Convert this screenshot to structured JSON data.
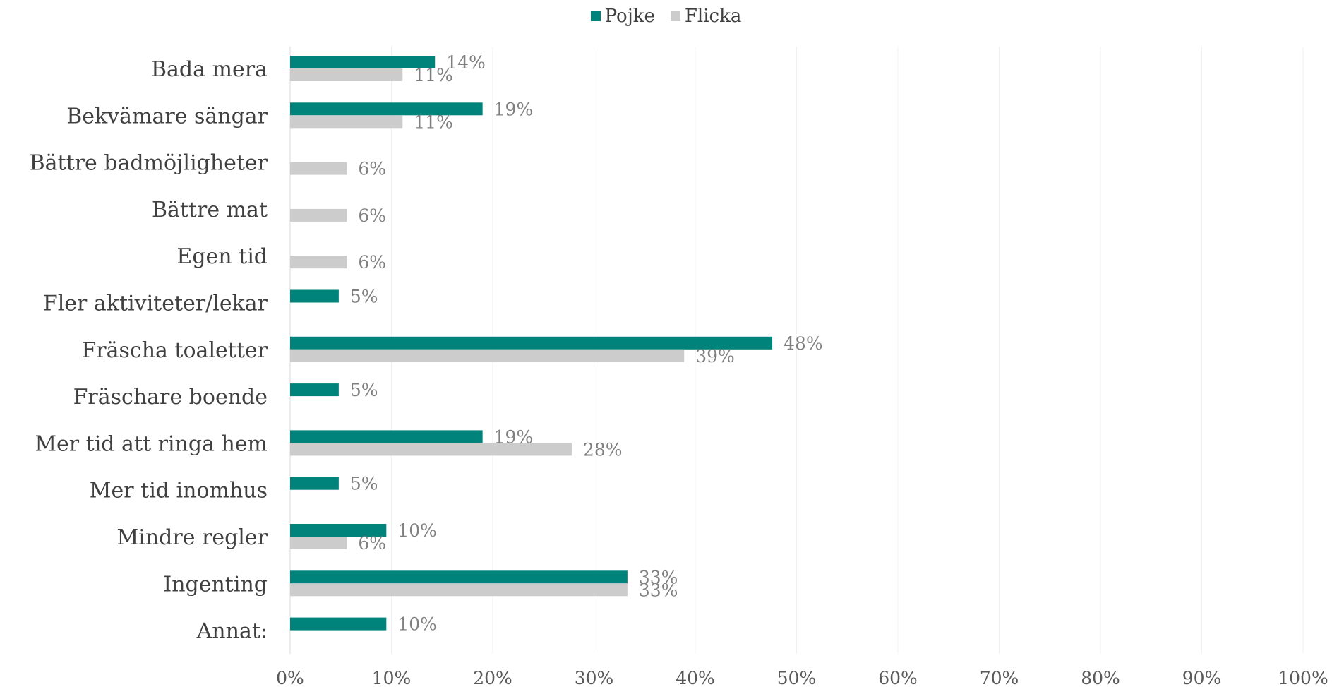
{
  "chart_data": {
    "type": "bar",
    "orientation": "horizontal",
    "categories": [
      "Bada mera",
      "Bekvämare sängar",
      "Bättre badmöjligheter",
      "Bättre mat",
      "Egen tid",
      "Fler aktiviteter/lekar",
      "Fräscha toaletter",
      "Fräschare boende",
      "Mer tid att ringa hem",
      "Mer tid inomhus",
      "Mindre regler",
      "Ingenting",
      "Annat:"
    ],
    "series": [
      {
        "name": "Pojke",
        "color": "#00837A",
        "values": [
          14.3,
          19,
          null,
          null,
          null,
          4.8,
          47.6,
          4.8,
          19,
          4.8,
          9.5,
          33.3,
          9.5
        ],
        "labels": [
          "14%",
          "19%",
          "",
          "",
          "",
          "5%",
          "48%",
          "5%",
          "19%",
          "5%",
          "10%",
          "33%",
          "10%"
        ]
      },
      {
        "name": "Flicka",
        "color": "#CCCCCC",
        "values": [
          11.1,
          11.1,
          5.6,
          5.6,
          5.6,
          null,
          38.9,
          null,
          27.8,
          null,
          5.6,
          33.3,
          null
        ],
        "labels": [
          "11%",
          "11%",
          "6%",
          "6%",
          "6%",
          "",
          "39%",
          "",
          "28%",
          "",
          "6%",
          "33%",
          ""
        ]
      }
    ],
    "x_ticks": [
      "0%",
      "10%",
      "20%",
      "30%",
      "40%",
      "50%",
      "60%",
      "70%",
      "80%",
      "90%",
      "100%"
    ],
    "xlim": [
      0,
      100
    ],
    "legend_position": "top-center",
    "grid": true
  }
}
